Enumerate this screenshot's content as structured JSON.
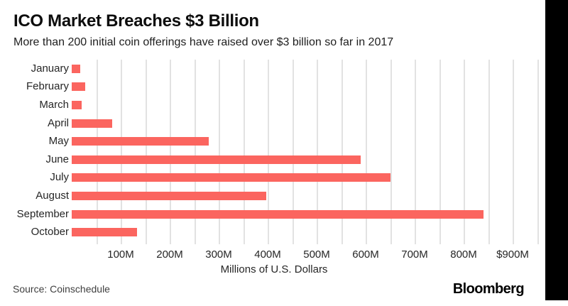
{
  "header": {
    "title": "ICO Market Breaches $3 Billion",
    "subtitle": "More than 200 initial coin offerings have raised over $3 billion so far in 2017"
  },
  "chart_data": {
    "type": "bar",
    "orientation": "horizontal",
    "title": "ICO Market Breaches $3 Billion",
    "subtitle": "More than 200 initial coin offerings have raised over $3 billion so far in 2017",
    "categories": [
      "January",
      "February",
      "March",
      "April",
      "May",
      "June",
      "July",
      "August",
      "September",
      "October"
    ],
    "values": [
      18,
      27,
      21,
      82,
      280,
      590,
      650,
      397,
      840,
      133
    ],
    "unit": "millions of U.S. dollars",
    "xlabel": "Millions of U.S. Dollars",
    "ylabel": "",
    "xlim": [
      0,
      950
    ],
    "x_tick_values": [
      100,
      200,
      300,
      400,
      500,
      600,
      700,
      800,
      900
    ],
    "x_tick_labels": [
      "100M",
      "200M",
      "300M",
      "400M",
      "500M",
      "600M",
      "700M",
      "800M",
      "$900M"
    ],
    "gridline_step": 50,
    "grid": true,
    "legend": false,
    "bar_color": "#fb655f",
    "gridline_color": "#e2e2e2"
  },
  "footer": {
    "source": "Source: Coinschedule",
    "logo": "Bloomberg"
  }
}
